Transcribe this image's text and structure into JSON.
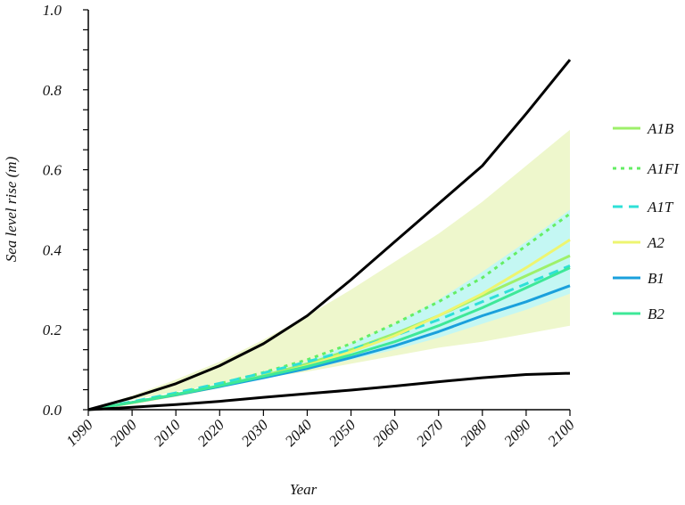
{
  "chart_data": {
    "type": "line",
    "xlabel": "Year",
    "ylabel": "Sea level rise (m)",
    "xlim": [
      1990,
      2100
    ],
    "ylim": [
      0,
      1.0
    ],
    "x_ticks": [
      "1990",
      "2000",
      "2010",
      "2020",
      "2030",
      "2040",
      "2050",
      "2060",
      "2070",
      "2080",
      "2090",
      "2100"
    ],
    "y_ticks": [
      "0.0",
      "0.2",
      "0.4",
      "0.6",
      "0.8",
      "1.0"
    ],
    "y_minor_step": 0.05,
    "grid": false,
    "legend_position": "right",
    "x": [
      1990,
      2000,
      2010,
      2020,
      2030,
      2040,
      2050,
      2060,
      2070,
      2080,
      2090,
      2100
    ],
    "bands": [
      {
        "color": "#eef7cc",
        "upper": [
          0,
          0.035,
          0.075,
          0.12,
          0.175,
          0.235,
          0.3,
          0.37,
          0.44,
          0.52,
          0.61,
          0.7
        ],
        "lower": [
          0,
          0.025,
          0.045,
          0.065,
          0.08,
          0.095,
          0.115,
          0.135,
          0.155,
          0.17,
          0.19,
          0.21
        ]
      },
      {
        "color": "#c4f7f3",
        "upper": [
          0,
          0.02,
          0.042,
          0.065,
          0.09,
          0.12,
          0.165,
          0.215,
          0.275,
          0.345,
          0.42,
          0.5
        ],
        "lower": [
          0,
          0.02,
          0.04,
          0.06,
          0.08,
          0.1,
          0.125,
          0.15,
          0.18,
          0.215,
          0.25,
          0.29
        ]
      }
    ],
    "envelope": [
      {
        "color": "#000000",
        "values": [
          0,
          0.03,
          0.065,
          0.11,
          0.165,
          0.235,
          0.325,
          0.42,
          0.515,
          0.61,
          0.74,
          0.875
        ]
      },
      {
        "color": "#000000",
        "values": [
          0,
          0.006,
          0.013,
          0.021,
          0.031,
          0.04,
          0.049,
          0.059,
          0.07,
          0.08,
          0.088,
          0.091
        ]
      }
    ],
    "series": [
      {
        "name": "A1B",
        "color": "#9ef06a",
        "dash": "solid",
        "values": [
          0,
          0.018,
          0.038,
          0.06,
          0.085,
          0.115,
          0.15,
          0.19,
          0.235,
          0.285,
          0.335,
          0.385
        ]
      },
      {
        "name": "A1FI",
        "color": "#64ee64",
        "dash": "dotted",
        "values": [
          0,
          0.018,
          0.04,
          0.065,
          0.093,
          0.125,
          0.165,
          0.215,
          0.27,
          0.33,
          0.41,
          0.49
        ]
      },
      {
        "name": "A1T",
        "color": "#2fe0d7",
        "dash": "dashed",
        "values": [
          0,
          0.02,
          0.042,
          0.066,
          0.092,
          0.12,
          0.15,
          0.185,
          0.225,
          0.27,
          0.315,
          0.36
        ]
      },
      {
        "name": "A2",
        "color": "#eef570",
        "dash": "solid",
        "values": [
          0,
          0.017,
          0.036,
          0.058,
          0.082,
          0.11,
          0.145,
          0.185,
          0.235,
          0.29,
          0.355,
          0.425
        ]
      },
      {
        "name": "B1",
        "color": "#1aa0dc",
        "dash": "solid",
        "values": [
          0,
          0.018,
          0.037,
          0.058,
          0.08,
          0.103,
          0.13,
          0.16,
          0.195,
          0.235,
          0.27,
          0.31
        ]
      },
      {
        "name": "B2",
        "color": "#3ee898",
        "dash": "solid",
        "values": [
          0,
          0.018,
          0.038,
          0.06,
          0.083,
          0.108,
          0.137,
          0.17,
          0.21,
          0.255,
          0.305,
          0.355
        ]
      }
    ]
  }
}
